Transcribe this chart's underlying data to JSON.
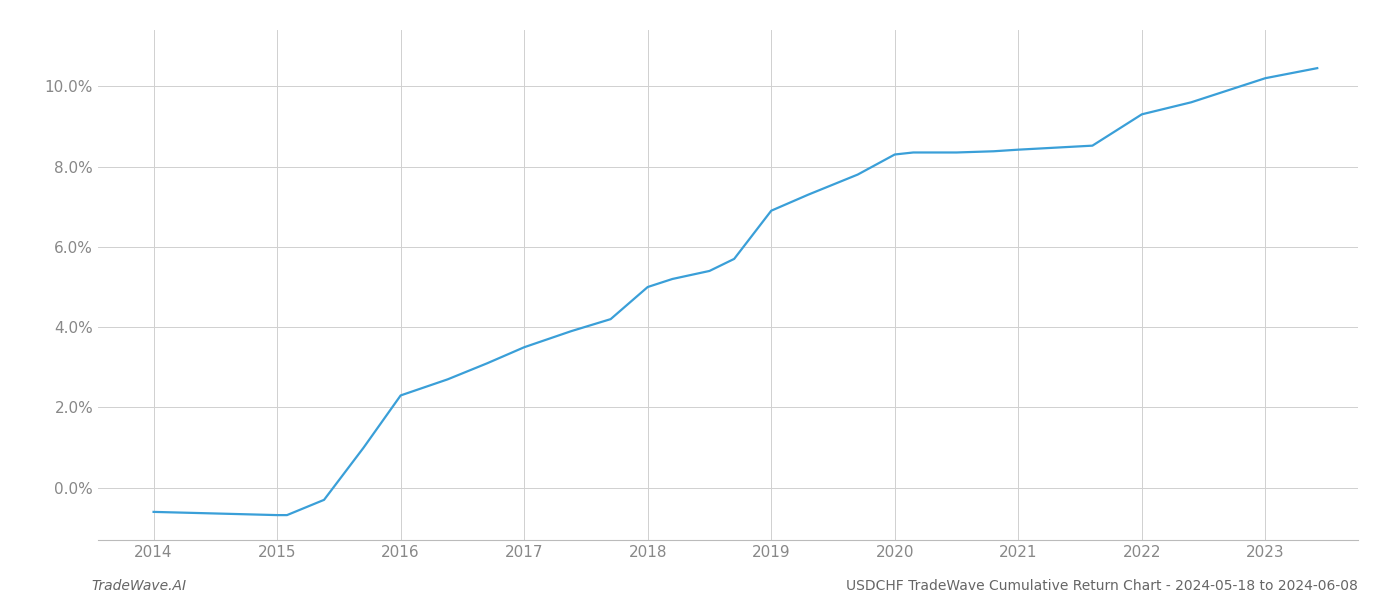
{
  "x_years": [
    2014.0,
    2014.38,
    2015.0,
    2015.08,
    2015.38,
    2015.7,
    2016.0,
    2016.38,
    2016.7,
    2017.0,
    2017.38,
    2017.7,
    2018.0,
    2018.2,
    2018.5,
    2018.7,
    2019.0,
    2019.3,
    2019.7,
    2020.0,
    2020.15,
    2020.5,
    2020.8,
    2021.0,
    2021.3,
    2021.6,
    2022.0,
    2022.4,
    2022.8,
    2023.0,
    2023.42
  ],
  "y_values": [
    -0.006,
    -0.0063,
    -0.0068,
    -0.0068,
    -0.003,
    0.01,
    0.023,
    0.027,
    0.031,
    0.035,
    0.039,
    0.042,
    0.05,
    0.052,
    0.054,
    0.057,
    0.069,
    0.073,
    0.078,
    0.083,
    0.0835,
    0.0835,
    0.0838,
    0.0842,
    0.0847,
    0.0852,
    0.093,
    0.096,
    0.1,
    0.102,
    0.1045
  ],
  "line_color": "#3a9fd8",
  "line_width": 1.6,
  "background_color": "#ffffff",
  "grid_color": "#d0d0d0",
  "tick_label_color": "#888888",
  "tick_fontsize": 11,
  "footer_left": "TradeWave.AI",
  "footer_right": "USDCHF TradeWave Cumulative Return Chart - 2024-05-18 to 2024-06-08",
  "footer_fontsize": 10,
  "xlim": [
    2013.55,
    2023.75
  ],
  "ylim": [
    -0.013,
    0.114
  ],
  "yticks": [
    0.0,
    0.02,
    0.04,
    0.06,
    0.08,
    0.1
  ],
  "xticks": [
    2014,
    2015,
    2016,
    2017,
    2018,
    2019,
    2020,
    2021,
    2022,
    2023
  ]
}
